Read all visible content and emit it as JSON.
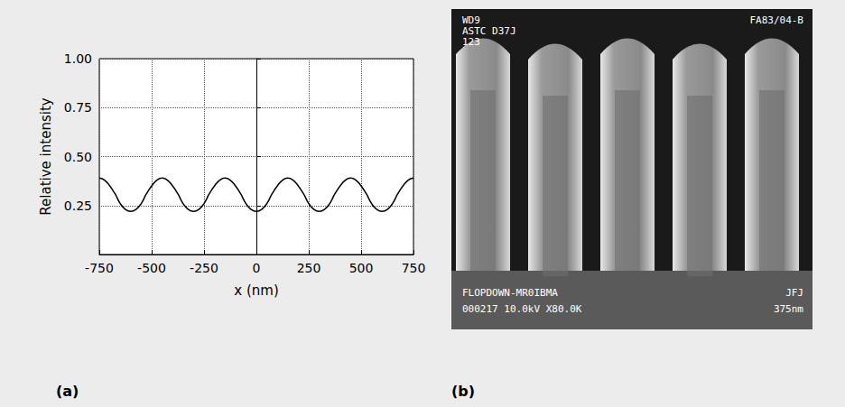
{
  "chart_data": {
    "type": "line",
    "xlabel": "x (nm)",
    "ylabel": "Relative intensity",
    "x": [
      -750,
      -725,
      -700,
      -675,
      -650,
      -625,
      -600,
      -575,
      -550,
      -525,
      -500,
      -475,
      -450,
      -425,
      -400,
      -375,
      -350,
      -325,
      -300,
      -275,
      -250,
      -225,
      -200,
      -175,
      -150,
      -125,
      -100,
      -75,
      -50,
      -25,
      0,
      25,
      50,
      75,
      100,
      125,
      150,
      175,
      200,
      225,
      250,
      275,
      300,
      325,
      350,
      375,
      400,
      425,
      450,
      475,
      500,
      525,
      550,
      575,
      600,
      625,
      650,
      675,
      700,
      725,
      750
    ],
    "values": [
      0.39,
      0.38,
      0.35,
      0.31,
      0.26,
      0.23,
      0.22,
      0.23,
      0.26,
      0.31,
      0.35,
      0.38,
      0.39,
      0.38,
      0.35,
      0.31,
      0.26,
      0.23,
      0.22,
      0.23,
      0.26,
      0.31,
      0.35,
      0.38,
      0.39,
      0.38,
      0.35,
      0.31,
      0.26,
      0.23,
      0.22,
      0.23,
      0.26,
      0.31,
      0.35,
      0.38,
      0.39,
      0.38,
      0.35,
      0.31,
      0.26,
      0.23,
      0.22,
      0.23,
      0.26,
      0.31,
      0.35,
      0.38,
      0.39,
      0.38,
      0.35,
      0.31,
      0.26,
      0.23,
      0.22,
      0.23,
      0.26,
      0.31,
      0.35,
      0.38,
      0.39
    ],
    "color": "#000000",
    "xlim": [
      -750,
      750
    ],
    "xticks": [
      -750,
      -500,
      -250,
      0,
      250,
      500,
      750
    ],
    "ylim": [
      0,
      1
    ],
    "yticks": [
      {
        "value": 0.25,
        "label": "0.25"
      },
      {
        "value": 0.5,
        "label": "0.50"
      },
      {
        "value": 0.75,
        "label": "0.75"
      },
      {
        "value": 1,
        "label": "1.00"
      }
    ],
    "grid": true
  },
  "panel_labels": [
    "(a)",
    "(b)"
  ],
  "sem_image": {
    "top_left": [
      "WD9",
      "ASTC D37J",
      "123"
    ],
    "top_right": "FA83/04-B",
    "bottom_left": [
      "FLOPDOWN-MR0IBMA",
      "000217 10.0kV X80.0K"
    ],
    "bottom_right": [
      "JFJ",
      "375nm"
    ]
  }
}
